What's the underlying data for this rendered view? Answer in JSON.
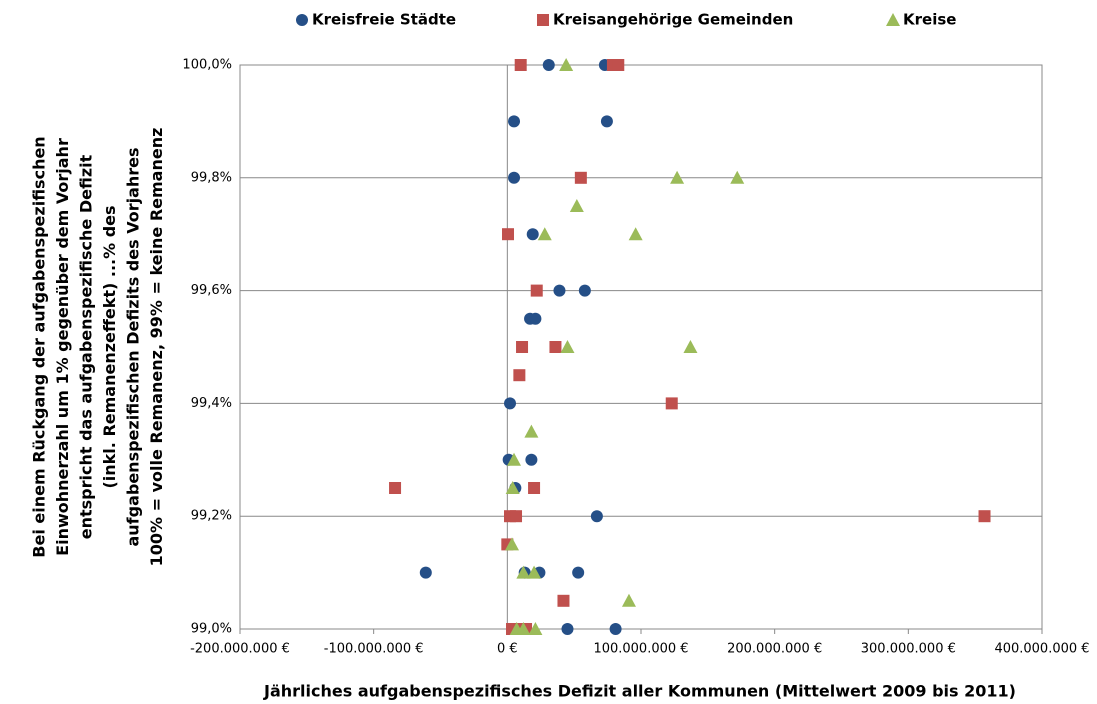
{
  "chart_data": {
    "type": "scatter",
    "xlabel": "Jährliches aufgabenspezifisches Defizit aller Kommunen (Mittelwert 2009 bis 2011)",
    "ylabel": [
      "Bei einem Rückgang der aufgabenspezifischen",
      "Einwohnerzahl um 1% gegenüber dem Vorjahr",
      "entspricht das aufgabenspezifische Defizit",
      "(inkl. Remanenzeffekt) ...% des",
      "aufgabenspezifischen Defizits des Vorjahres",
      "100% = volle Remanenz, 99% = keine Remanenz"
    ],
    "xlim": [
      -200000000,
      400000000
    ],
    "ylim": [
      99.0,
      100.0
    ],
    "xticks": [
      {
        "value": -200000000,
        "label": "-200.000.000 €"
      },
      {
        "value": -100000000,
        "label": "-100.000.000 €"
      },
      {
        "value": 0,
        "label": "0 €"
      },
      {
        "value": 100000000,
        "label": "100.000.000 €"
      },
      {
        "value": 200000000,
        "label": "200.000.000 €"
      },
      {
        "value": 300000000,
        "label": "300.000.000 €"
      },
      {
        "value": 400000000,
        "label": "400.000.000 €"
      }
    ],
    "yticks": [
      {
        "value": 99.0,
        "label": "99,0%"
      },
      {
        "value": 99.2,
        "label": "99,2%"
      },
      {
        "value": 99.4,
        "label": "99,4%"
      },
      {
        "value": 99.6,
        "label": "99,6%"
      },
      {
        "value": 99.8,
        "label": "99,8%"
      },
      {
        "value": 100.0,
        "label": "100,0%"
      }
    ],
    "grid": true,
    "legend": "top",
    "series": [
      {
        "name": "Kreisfreie Städte",
        "color": "#254f87",
        "marker": "circle",
        "x": [
          31000000,
          73000000,
          5000000,
          74500000,
          5000000,
          19000000,
          39000000,
          58000000,
          17000000,
          21000000,
          2000000,
          1000000,
          18000000,
          6000000,
          67000000,
          -61000000,
          13000000,
          24000000,
          53000000,
          45000000,
          81000000
        ],
        "y": [
          100,
          100,
          99.9,
          99.9,
          99.8,
          99.7,
          99.6,
          99.6,
          99.55,
          99.55,
          99.4,
          99.3,
          99.3,
          99.25,
          99.2,
          99.1,
          99.1,
          99.1,
          99.1,
          99.0,
          99.0
        ]
      },
      {
        "name": "Kreisangehörige Gemeinden",
        "color": "#c0504d",
        "marker": "square",
        "x": [
          10000000,
          79000000,
          83000000,
          55000000,
          500000,
          22000000,
          11000000,
          36000000,
          9000000,
          123000000,
          -84000000,
          20000000,
          2000000,
          6500000,
          357000000,
          0,
          42000000,
          3500000,
          9000000,
          14000000
        ],
        "y": [
          100,
          100,
          100,
          99.8,
          99.7,
          99.6,
          99.5,
          99.5,
          99.45,
          99.4,
          99.25,
          99.25,
          99.2,
          99.2,
          99.2,
          99.15,
          99.05,
          99.0,
          99.0,
          99.0
        ]
      },
      {
        "name": "Kreise",
        "color": "#9bbb59",
        "marker": "triangle",
        "x": [
          44000000,
          127000000,
          172000000,
          52000000,
          28000000,
          96000000,
          45000000,
          137000000,
          18000000,
          5000000,
          4000000,
          3500000,
          12000000,
          20000000,
          91000000,
          7000000,
          12000000,
          21000000
        ],
        "y": [
          100,
          99.8,
          99.8,
          99.75,
          99.7,
          99.7,
          99.5,
          99.5,
          99.35,
          99.3,
          99.25,
          99.15,
          99.1,
          99.1,
          99.05,
          99.0,
          99.0,
          99.0
        ]
      }
    ]
  }
}
